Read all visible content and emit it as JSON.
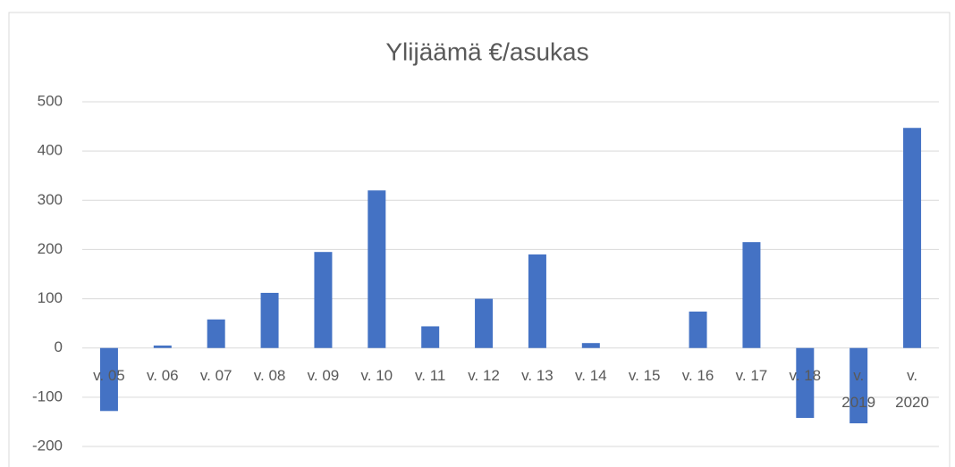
{
  "chart_data": {
    "type": "bar",
    "title": "Ylijäämä €/asukas",
    "categories": [
      "v. 05",
      "v. 06",
      "v. 07",
      "v. 08",
      "v. 09",
      "v. 10",
      "v. 11",
      "v. 12",
      "v. 13",
      "v. 14",
      "v. 15",
      "v. 16",
      "v. 17",
      "v. 18",
      "v. 2019",
      "v. 2020"
    ],
    "values": [
      -128,
      5,
      58,
      112,
      195,
      320,
      44,
      100,
      190,
      10,
      0,
      74,
      215,
      -142,
      -153,
      447
    ],
    "color": "#4472c4",
    "ylim": [
      -200,
      500
    ],
    "yticks": [
      -200,
      -100,
      0,
      100,
      200,
      300,
      400,
      500
    ],
    "grid": true
  }
}
